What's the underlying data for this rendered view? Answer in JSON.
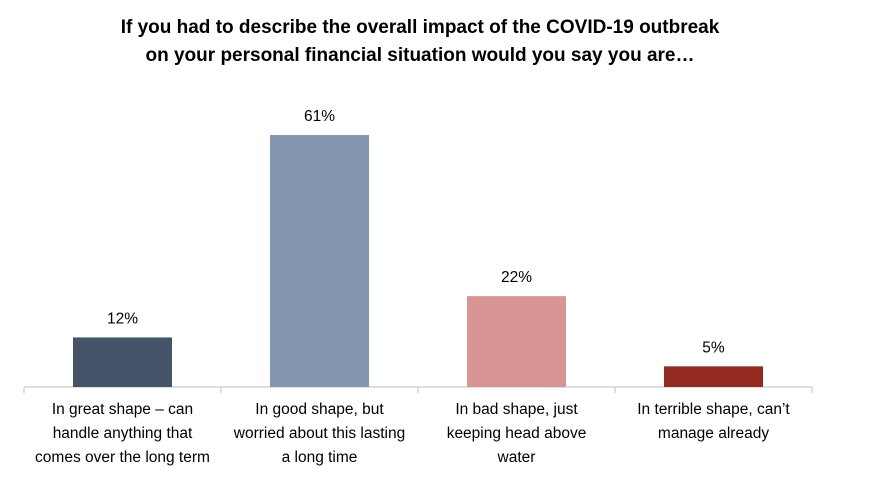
{
  "chart_data": {
    "type": "bar",
    "title": {
      "line1": "If you had to describe the overall impact of the COVID-19 outbreak",
      "line2": "on your personal financial situation would you say you are…"
    },
    "categories": [
      "In great shape – can handle anything that comes over the long term",
      "In good shape, but worried about this lasting a long time",
      "In bad shape, just keeping head above water",
      "In terrible shape, can’t manage already"
    ],
    "category_lines": [
      [
        "In great shape – can",
        "handle anything that",
        "comes over the long term"
      ],
      [
        "In good shape, but",
        "worried about this lasting",
        "a long time"
      ],
      [
        "In bad shape, just",
        "keeping head above",
        "water"
      ],
      [
        "In terrible shape, can’t",
        "manage already"
      ]
    ],
    "values": [
      12,
      61,
      22,
      5
    ],
    "data_labels": [
      "12%",
      "61%",
      "22%",
      "5%"
    ],
    "colors": [
      "#46546a",
      "#8497b0",
      "#d99594",
      "#952a20"
    ],
    "ylim": [
      0,
      63
    ],
    "grid": false,
    "legend": "none",
    "xlabel": "",
    "ylabel": ""
  }
}
